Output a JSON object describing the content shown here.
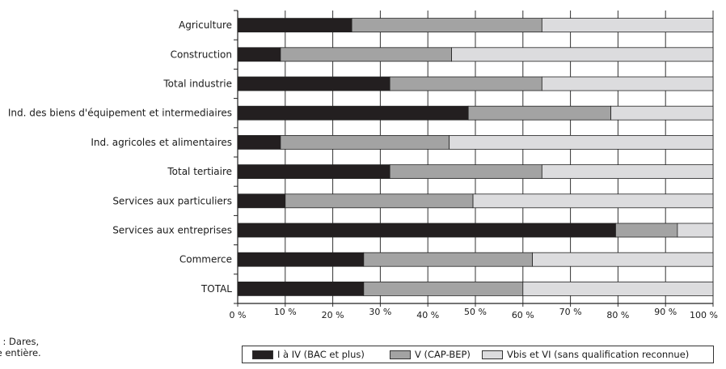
{
  "chart_data": {
    "type": "bar",
    "orientation": "horizontal",
    "stacked": true,
    "categories": [
      "Agriculture",
      "Construction",
      "Total industrie",
      "Ind. des biens d'équipement et intermediaires",
      "Ind. agricoles et alimentaires",
      "Total tertiaire",
      "Services aux particuliers",
      "Services aux entreprises",
      "Commerce",
      "TOTAL"
    ],
    "series": [
      {
        "name": "I à IV (BAC et plus)",
        "color": "#231f20",
        "values": [
          24,
          9,
          32,
          48.5,
          9,
          32,
          10,
          79.5,
          26.5,
          26.5
        ]
      },
      {
        "name": "V (CAP-BEP)",
        "color": "#a3a3a3",
        "values": [
          40,
          36,
          32,
          30,
          35.5,
          32,
          39.5,
          13,
          35.5,
          33.5
        ]
      },
      {
        "name": "Vbis et VI (sans qualification reconnue)",
        "color": "#dcdcde",
        "values": [
          36,
          55,
          36,
          21.5,
          55.5,
          36,
          50.5,
          7.5,
          38,
          40
        ]
      }
    ],
    "xlim": [
      0,
      100
    ],
    "xticks": [
      "0 %",
      "10 %",
      "20 %",
      "30 %",
      "40 %",
      "50 %",
      "60 %",
      "70 %",
      "80 %",
      "90 %",
      "100 %"
    ],
    "grid": true,
    "legend": "bottom"
  },
  "source": {
    "line1": "rce : Dares,",
    "line2": "nce entière."
  }
}
